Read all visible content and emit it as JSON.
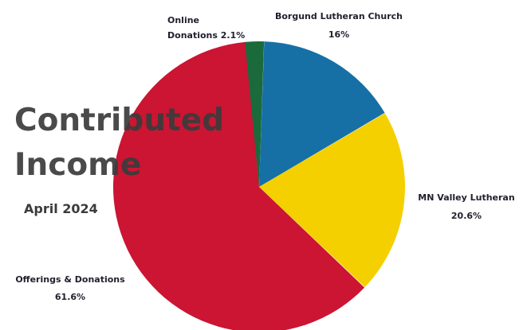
{
  "chart_data": {
    "type": "pie",
    "title_lines": [
      "Contributed",
      "Income"
    ],
    "subtitle": "April 2024",
    "slices": [
      {
        "label": "Borgund Lutheran Church",
        "value_label": "16%",
        "value": 16.0,
        "color": "#1670a6"
      },
      {
        "label": "MN Valley Lutheran",
        "value_label": "20.6%",
        "value": 20.6,
        "color": "#f4d000"
      },
      {
        "label": "Offerings & Donations",
        "value_label": "61.6%",
        "value": 61.6,
        "color": "#cb1533"
      },
      {
        "label": "Online",
        "label_line2": "Donations 2.1%",
        "value": 2.1,
        "color": "#1b6a3c"
      }
    ]
  }
}
